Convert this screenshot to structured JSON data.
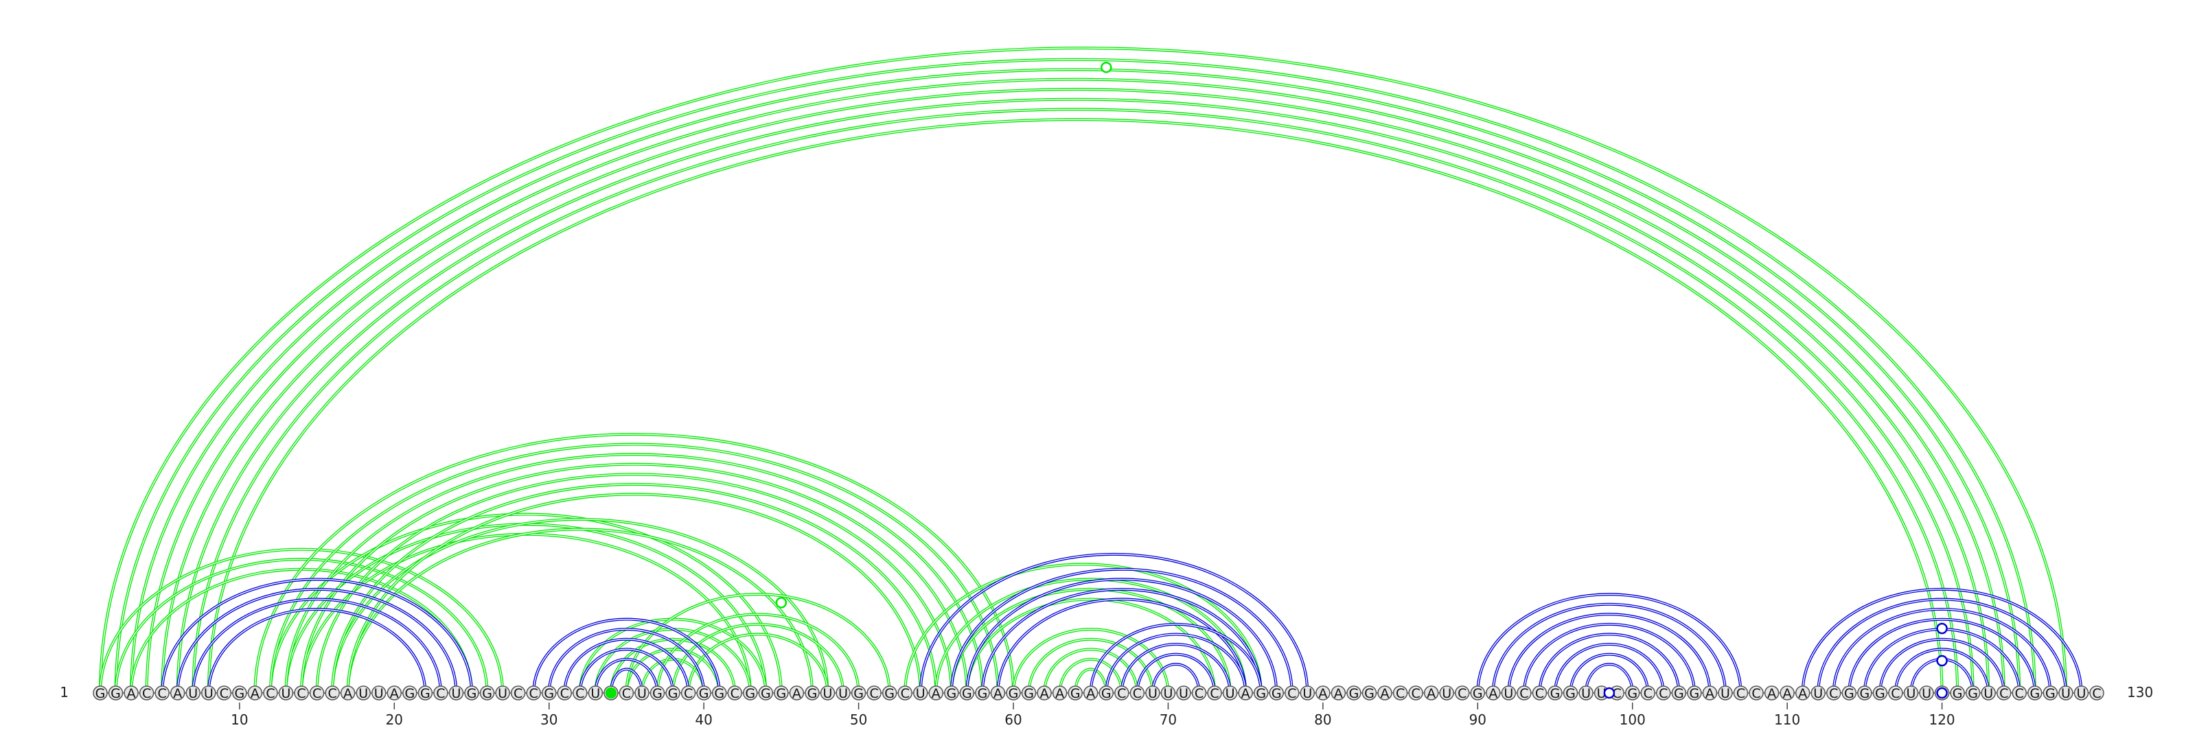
{
  "diagram": {
    "sequence": "GGACCAUUCGACUCCCAUUAGGCUGGUCCGCCUCCUGGCGGCGGGAGUUGCGCUAGGGAGGAAGAGCCUUUCCUAGGCUAAGGACCAUCGAUCCGGUUCGCCGGAUCCAAAUCGGGCUUCGGUCCGGUUC",
    "start_label": "1",
    "end_label": "130",
    "ticks": [
      "10",
      "20",
      "30",
      "40",
      "50",
      "60",
      "70",
      "80",
      "90",
      "100",
      "110",
      "120"
    ],
    "colors": {
      "set_a": "#00e600",
      "set_b": "#0000d6",
      "node_fill": "#e6e6e6"
    },
    "arc_sets": [
      {
        "name": "",
        "color": "#00e600",
        "pairs": [
          [
            1,
            128
          ],
          [
            2,
            126
          ],
          [
            3,
            125
          ],
          [
            4,
            124
          ],
          [
            5,
            123
          ],
          [
            6,
            122
          ],
          [
            7,
            121
          ],
          [
            8,
            120
          ],
          [
            1,
            27
          ],
          [
            2,
            26
          ],
          [
            3,
            25
          ],
          [
            12,
            45
          ],
          [
            13,
            44
          ],
          [
            14,
            43
          ],
          [
            16,
            48
          ],
          [
            17,
            47
          ],
          [
            11,
            60
          ],
          [
            12,
            59
          ],
          [
            13,
            58
          ],
          [
            14,
            57
          ],
          [
            15,
            56
          ],
          [
            16,
            55
          ],
          [
            17,
            54
          ],
          [
            32,
            44
          ],
          [
            33,
            43
          ],
          [
            34,
            42
          ],
          [
            35,
            41
          ],
          [
            36,
            40
          ],
          [
            35,
            52
          ],
          [
            37,
            50
          ],
          [
            38,
            49
          ],
          [
            39,
            48
          ],
          [
            53,
            76
          ],
          [
            55,
            75
          ],
          [
            56,
            74
          ],
          [
            57,
            73
          ],
          [
            60,
            70
          ],
          [
            61,
            69
          ],
          [
            62,
            68
          ],
          [
            63,
            67
          ],
          [
            64,
            66
          ]
        ]
      },
      {
        "name": "",
        "color": "#0000d6",
        "pairs": [
          [
            5,
            25
          ],
          [
            6,
            24
          ],
          [
            7,
            23
          ],
          [
            8,
            22
          ],
          [
            29,
            41
          ],
          [
            30,
            40
          ],
          [
            31,
            39
          ],
          [
            32,
            38
          ],
          [
            33,
            37
          ],
          [
            34,
            36
          ],
          [
            54,
            79
          ],
          [
            56,
            78
          ],
          [
            57,
            77
          ],
          [
            58,
            76
          ],
          [
            59,
            75
          ],
          [
            65,
            76
          ],
          [
            66,
            75
          ],
          [
            67,
            74
          ],
          [
            68,
            73
          ],
          [
            69,
            72
          ],
          [
            90,
            107
          ],
          [
            91,
            106
          ],
          [
            92,
            105
          ],
          [
            93,
            104
          ],
          [
            94,
            103
          ],
          [
            95,
            102
          ],
          [
            96,
            101
          ],
          [
            97,
            100
          ],
          [
            111,
            129
          ],
          [
            112,
            128
          ],
          [
            113,
            127
          ],
          [
            114,
            126
          ],
          [
            115,
            125
          ],
          [
            116,
            124
          ],
          [
            117,
            123
          ],
          [
            118,
            122
          ]
        ]
      }
    ],
    "markers": [
      {
        "color": "#00e600",
        "filled": false,
        "pos": 66,
        "height_fraction": 0.97
      },
      {
        "color": "#00e600",
        "filled": false,
        "pos": 45,
        "height_fraction": 0.14
      },
      {
        "color": "#00e600",
        "filled": true,
        "pos": 34,
        "height_fraction": 0.0
      },
      {
        "color": "#0000d6",
        "filled": false,
        "pos": 98.5,
        "height_fraction": 0.0
      },
      {
        "color": "#0000d6",
        "filled": false,
        "pos": 120,
        "height_fraction": 0.1
      },
      {
        "color": "#0000d6",
        "filled": false,
        "pos": 120,
        "height_fraction": 0.05
      },
      {
        "color": "#0000d6",
        "filled": false,
        "pos": 120,
        "height_fraction": 0.0
      }
    ]
  }
}
